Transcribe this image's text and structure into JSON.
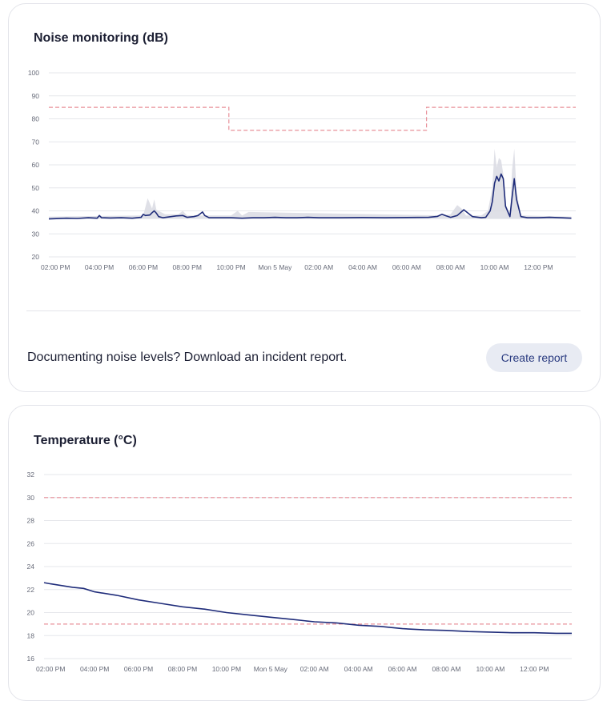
{
  "noise_card": {
    "title": "Noise monitoring (dB)",
    "cta_text": "Documenting noise levels? Download an incident report.",
    "cta_button": "Create report"
  },
  "temp_card": {
    "title": "Temperature (°C)"
  },
  "colors": {
    "line": "#1f2c7a",
    "threshold": "#e8909a",
    "band": "#d9dbe3",
    "grid": "#e6e7eb"
  },
  "chart_data": [
    {
      "type": "line",
      "title": "Noise monitoring (dB)",
      "x_tick_labels": [
        "02:00 PM",
        "04:00 PM",
        "06:00 PM",
        "08:00 PM",
        "10:00 PM",
        "Mon 5 May",
        "02:00 AM",
        "04:00 AM",
        "06:00 AM",
        "08:00 AM",
        "10:00 AM",
        "12:00 PM"
      ],
      "x_range_hours": [
        -0.3,
        23.7
      ],
      "ylim": [
        20,
        100
      ],
      "y_ticks": [
        20,
        30,
        40,
        50,
        60,
        70,
        80,
        90,
        100
      ],
      "grid": true,
      "series": [
        {
          "role": "measurement",
          "x": [
            -0.3,
            0.5,
            1.0,
            1.5,
            1.9,
            2.0,
            2.1,
            2.5,
            3.0,
            3.5,
            3.9,
            4.0,
            4.1,
            4.3,
            4.4,
            4.5,
            4.6,
            4.7,
            4.9,
            5.5,
            5.8,
            6.0,
            6.3,
            6.5,
            6.7,
            6.8,
            7.0,
            7.5,
            8.0,
            8.5,
            9.0,
            9.5,
            10.0,
            10.5,
            11.0,
            11.5,
            12.0,
            13.0,
            14.0,
            15.0,
            16.0,
            17.0,
            17.4,
            17.6,
            17.8,
            18.0,
            18.3,
            18.6,
            19.0,
            19.4,
            19.6,
            19.8,
            19.9,
            20.0,
            20.1,
            20.2,
            20.3,
            20.4,
            20.5,
            20.7,
            20.8,
            20.9,
            21.0,
            21.2,
            21.5,
            22.0,
            22.5,
            23.0,
            23.5
          ],
          "y": [
            36.5,
            36.8,
            36.7,
            37.0,
            36.8,
            38.0,
            37.0,
            36.9,
            37.0,
            36.8,
            37.2,
            38.5,
            38.0,
            38.2,
            39.2,
            40.0,
            39.0,
            37.5,
            37.0,
            37.8,
            38.0,
            37.2,
            37.5,
            38.0,
            39.5,
            38.0,
            37.0,
            37.0,
            37.0,
            36.8,
            37.0,
            37.0,
            37.2,
            37.0,
            37.0,
            37.2,
            37.0,
            37.0,
            37.1,
            37.0,
            37.1,
            37.2,
            37.6,
            38.5,
            37.8,
            37.2,
            38.0,
            40.5,
            37.5,
            37.0,
            37.2,
            40.0,
            44.0,
            52.0,
            55.0,
            53.0,
            56.0,
            54.0,
            42.0,
            37.5,
            46.0,
            54.0,
            45.0,
            37.5,
            37.0,
            37.0,
            37.2,
            37.0,
            36.8
          ]
        },
        {
          "role": "range",
          "x": [
            -0.3,
            4.0,
            4.2,
            4.4,
            4.5,
            4.6,
            5.0,
            5.6,
            5.8,
            6.0,
            8.0,
            8.3,
            8.5,
            8.8,
            17.7,
            18.0,
            18.3,
            18.5,
            18.7,
            19.0,
            19.4,
            19.7,
            19.9,
            20.0,
            20.1,
            20.2,
            20.3,
            20.4,
            20.5,
            20.7,
            20.8,
            20.9,
            21.0,
            21.2,
            23.5
          ],
          "y_max": [
            37.5,
            38.0,
            45.5,
            41.0,
            45.0,
            40.5,
            38.5,
            38.5,
            40.0,
            38.0,
            38.0,
            40.0,
            38.0,
            39.5,
            38.0,
            38.5,
            42.5,
            41.0,
            38.0,
            38.0,
            38.0,
            40.0,
            50.0,
            67.0,
            59.0,
            63.0,
            62.0,
            56.0,
            43.0,
            38.5,
            58.0,
            67.0,
            49.0,
            38.0,
            37.5
          ]
        },
        {
          "role": "threshold",
          "x": [
            -0.3,
            7.9,
            7.9,
            16.9,
            16.9,
            23.7
          ],
          "y": [
            85,
            85,
            75,
            75,
            85,
            85
          ]
        }
      ]
    },
    {
      "type": "line",
      "title": "Temperature (°C)",
      "x_tick_labels": [
        "02:00 PM",
        "04:00 PM",
        "06:00 PM",
        "08:00 PM",
        "10:00 PM",
        "Mon 5 May",
        "02:00 AM",
        "04:00 AM",
        "06:00 AM",
        "08:00 AM",
        "10:00 AM",
        "12:00 PM"
      ],
      "x_range_hours": [
        -0.3,
        23.7
      ],
      "ylim": [
        16,
        32
      ],
      "y_ticks": [
        16,
        18,
        20,
        22,
        24,
        26,
        28,
        30,
        32
      ],
      "grid": true,
      "series": [
        {
          "role": "measurement",
          "x": [
            -0.3,
            0,
            1,
            1.5,
            2,
            3,
            4,
            5,
            6,
            7,
            8,
            9,
            10,
            11,
            12,
            13,
            14,
            15,
            16,
            17,
            18,
            19,
            20,
            21,
            22,
            23,
            23.7
          ],
          "y": [
            22.6,
            22.5,
            22.2,
            22.1,
            21.8,
            21.5,
            21.1,
            20.8,
            20.5,
            20.3,
            20.0,
            19.8,
            19.6,
            19.4,
            19.2,
            19.1,
            18.9,
            18.8,
            18.6,
            18.5,
            18.45,
            18.35,
            18.3,
            18.25,
            18.25,
            18.2,
            18.2
          ]
        },
        {
          "role": "threshold",
          "x": [
            -0.3,
            23.7
          ],
          "y": [
            30,
            30
          ]
        },
        {
          "role": "threshold",
          "x": [
            -0.3,
            23.7
          ],
          "y": [
            19,
            19
          ]
        }
      ]
    }
  ]
}
